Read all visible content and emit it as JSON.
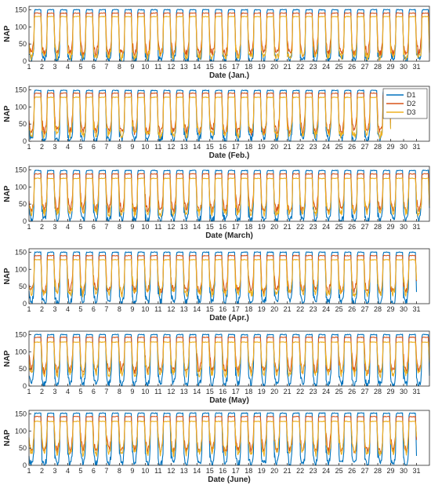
{
  "chart_data": [
    {
      "type": "line",
      "xlabel": "Date (Jan.)",
      "ylabel": "NAP",
      "days": 31,
      "xlim": [
        1,
        32
      ],
      "ylim": [
        0,
        160
      ],
      "xticks": [
        "1",
        "2",
        "3",
        "4",
        "5",
        "6",
        "7",
        "8",
        "9",
        "10",
        "11",
        "12",
        "13",
        "14",
        "15",
        "16",
        "17",
        "18",
        "19",
        "20",
        "21",
        "22",
        "23",
        "24",
        "25",
        "26",
        "27",
        "28",
        "29",
        "30",
        "31"
      ],
      "yticks": [
        0,
        50,
        100,
        150
      ],
      "legend": null,
      "series": [
        {
          "name": "D1",
          "color": "#0072BD",
          "daytime_plateau": 150,
          "night_min": 0,
          "night_mean": 20
        },
        {
          "name": "D2",
          "color": "#D95319",
          "daytime_plateau": 140,
          "night_min": 20,
          "night_mean": 50
        },
        {
          "name": "D3",
          "color": "#EDB120",
          "daytime_plateau": 130,
          "night_min": 10,
          "night_mean": 35
        }
      ]
    },
    {
      "type": "line",
      "xlabel": "Date (Feb.)",
      "ylabel": "NAP",
      "days": 28,
      "xlim": [
        1,
        32
      ],
      "ylim": [
        0,
        160
      ],
      "xticks": [
        "1",
        "2",
        "3",
        "4",
        "5",
        "6",
        "7",
        "8",
        "9",
        "10",
        "11",
        "12",
        "13",
        "14",
        "15",
        "16",
        "17",
        "18",
        "19",
        "20",
        "21",
        "22",
        "23",
        "24",
        "25",
        "26",
        "27",
        "28",
        "29",
        "30",
        "31"
      ],
      "yticks": [
        0,
        50,
        100,
        150
      ],
      "legend": {
        "position": "top-right",
        "entries": [
          "D1",
          "D2",
          "D3"
        ]
      },
      "series": [
        {
          "name": "D1",
          "color": "#0072BD",
          "daytime_plateau": 148,
          "night_min": 0,
          "night_mean": 25
        },
        {
          "name": "D2",
          "color": "#D95319",
          "daytime_plateau": 140,
          "night_min": 25,
          "night_mean": 60
        },
        {
          "name": "D3",
          "color": "#EDB120",
          "daytime_plateau": 128,
          "night_min": 15,
          "night_mean": 45
        }
      ]
    },
    {
      "type": "line",
      "xlabel": "Date (March)",
      "ylabel": "NAP",
      "days": 31,
      "xlim": [
        1,
        32
      ],
      "ylim": [
        0,
        160
      ],
      "xticks": [
        "1",
        "2",
        "3",
        "4",
        "5",
        "6",
        "7",
        "8",
        "9",
        "10",
        "11",
        "12",
        "13",
        "14",
        "15",
        "16",
        "17",
        "18",
        "19",
        "20",
        "21",
        "22",
        "23",
        "24",
        "25",
        "26",
        "27",
        "28",
        "29",
        "30",
        "31"
      ],
      "yticks": [
        0,
        50,
        100,
        150
      ],
      "legend": null,
      "series": [
        {
          "name": "D1",
          "color": "#0072BD",
          "daytime_plateau": 148,
          "night_min": 0,
          "night_mean": 25
        },
        {
          "name": "D2",
          "color": "#D95319",
          "daytime_plateau": 138,
          "night_min": 30,
          "night_mean": 60
        },
        {
          "name": "D3",
          "color": "#EDB120",
          "daytime_plateau": 125,
          "night_min": 20,
          "night_mean": 50
        }
      ]
    },
    {
      "type": "line",
      "xlabel": "Date (Apr.)",
      "ylabel": "NAP",
      "days": 30,
      "xlim": [
        1,
        32
      ],
      "ylim": [
        0,
        160
      ],
      "xticks": [
        "1",
        "2",
        "3",
        "4",
        "5",
        "6",
        "7",
        "8",
        "9",
        "10",
        "11",
        "12",
        "13",
        "14",
        "15",
        "16",
        "17",
        "18",
        "19",
        "20",
        "21",
        "22",
        "23",
        "24",
        "25",
        "26",
        "27",
        "28",
        "29",
        "30",
        "31"
      ],
      "yticks": [
        0,
        50,
        100,
        150
      ],
      "legend": null,
      "series": [
        {
          "name": "D1",
          "color": "#0072BD",
          "daytime_plateau": 150,
          "night_min": 0,
          "night_mean": 30
        },
        {
          "name": "D2",
          "color": "#D95319",
          "daytime_plateau": 140,
          "night_min": 35,
          "night_mean": 65
        },
        {
          "name": "D3",
          "color": "#EDB120",
          "daytime_plateau": 128,
          "night_min": 25,
          "night_mean": 55
        }
      ]
    },
    {
      "type": "line",
      "xlabel": "Date (May)",
      "ylabel": "NAP",
      "days": 31,
      "xlim": [
        1,
        32
      ],
      "ylim": [
        0,
        160
      ],
      "xticks": [
        "1",
        "2",
        "3",
        "4",
        "5",
        "6",
        "7",
        "8",
        "9",
        "10",
        "11",
        "12",
        "13",
        "14",
        "15",
        "16",
        "17",
        "18",
        "19",
        "20",
        "21",
        "22",
        "23",
        "24",
        "25",
        "26",
        "27",
        "28",
        "29",
        "30",
        "31"
      ],
      "yticks": [
        0,
        50,
        100,
        150
      ],
      "legend": null,
      "series": [
        {
          "name": "D1",
          "color": "#0072BD",
          "daytime_plateau": 150,
          "night_min": 0,
          "night_mean": 35
        },
        {
          "name": "D2",
          "color": "#D95319",
          "daytime_plateau": 142,
          "night_min": 40,
          "night_mean": 75
        },
        {
          "name": "D3",
          "color": "#EDB120",
          "daytime_plateau": 128,
          "night_min": 30,
          "night_mean": 70
        }
      ]
    },
    {
      "type": "line",
      "xlabel": "Date (June)",
      "ylabel": "NAP",
      "days": 30,
      "xlim": [
        1,
        32
      ],
      "ylim": [
        0,
        160
      ],
      "xticks": [
        "1",
        "2",
        "3",
        "4",
        "5",
        "6",
        "7",
        "8",
        "9",
        "10",
        "11",
        "12",
        "13",
        "14",
        "15",
        "16",
        "17",
        "18",
        "19",
        "20",
        "21",
        "22",
        "23",
        "24",
        "25",
        "26",
        "27",
        "28",
        "29",
        "30",
        "31"
      ],
      "yticks": [
        0,
        50,
        100,
        150
      ],
      "legend": null,
      "series": [
        {
          "name": "D1",
          "color": "#0072BD",
          "daytime_plateau": 152,
          "night_min": 0,
          "night_mean": 35
        },
        {
          "name": "D2",
          "color": "#D95319",
          "daytime_plateau": 142,
          "night_min": 40,
          "night_mean": 75
        },
        {
          "name": "D3",
          "color": "#EDB120",
          "daytime_plateau": 128,
          "night_min": 30,
          "night_mean": 75
        }
      ]
    }
  ]
}
